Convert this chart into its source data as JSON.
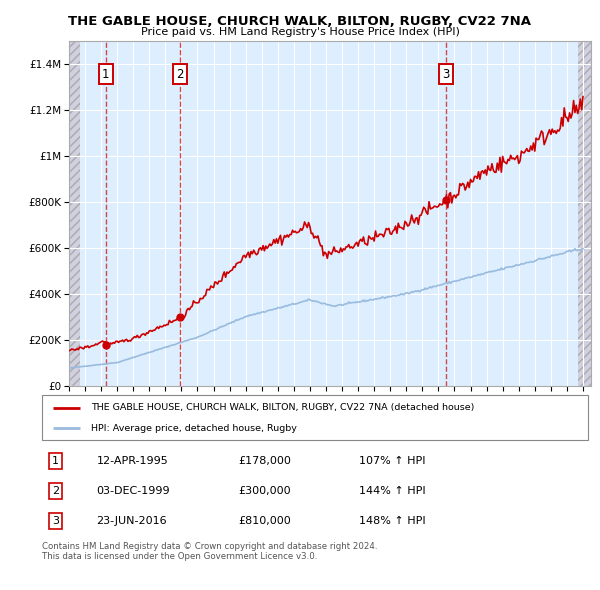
{
  "title": "THE GABLE HOUSE, CHURCH WALK, BILTON, RUGBY, CV22 7NA",
  "subtitle": "Price paid vs. HM Land Registry's House Price Index (HPI)",
  "background_color": "#ffffff",
  "plot_bg_color": "#ddeeff",
  "grid_color": "#ffffff",
  "sale_color": "#cc0000",
  "hpi_color": "#99bbdd",
  "sale_points": [
    {
      "date_num": 1995.28,
      "price": 178000,
      "label": "1"
    },
    {
      "date_num": 1999.92,
      "price": 300000,
      "label": "2"
    },
    {
      "date_num": 2016.48,
      "price": 810000,
      "label": "3"
    }
  ],
  "legend_label_sale": "THE GABLE HOUSE, CHURCH WALK, BILTON, RUGBY, CV22 7NA (detached house)",
  "legend_label_hpi": "HPI: Average price, detached house, Rugby",
  "table_rows": [
    {
      "num": "1",
      "date": "12-APR-1995",
      "price": "£178,000",
      "hpi": "107% ↑ HPI"
    },
    {
      "num": "2",
      "date": "03-DEC-1999",
      "price": "£300,000",
      "hpi": "144% ↑ HPI"
    },
    {
      "num": "3",
      "date": "23-JUN-2016",
      "price": "£810,000",
      "hpi": "148% ↑ HPI"
    }
  ],
  "footer": "Contains HM Land Registry data © Crown copyright and database right 2024.\nThis data is licensed under the Open Government Licence v3.0.",
  "xlim": [
    1993.0,
    2025.5
  ],
  "ylim": [
    0,
    1500000
  ],
  "yticks": [
    0,
    200000,
    400000,
    600000,
    800000,
    1000000,
    1200000,
    1400000
  ]
}
